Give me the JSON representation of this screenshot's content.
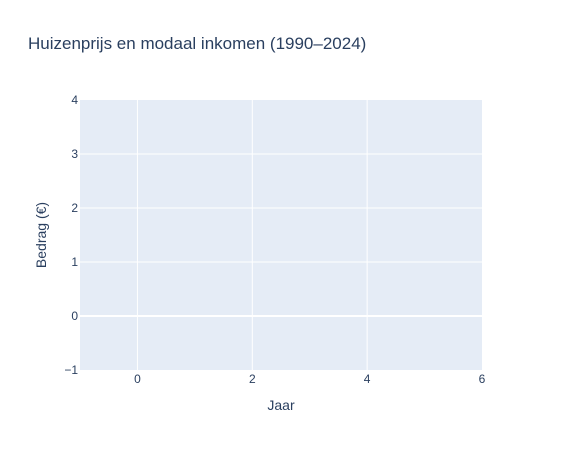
{
  "chart_data": {
    "type": "line",
    "title": "Huizenprijs en modaal inkomen (1990–2024)",
    "xlabel": "Jaar",
    "ylabel": "Bedrag (€)",
    "xlim": [
      -1,
      6
    ],
    "ylim": [
      -1,
      4
    ],
    "x_ticks": [
      0,
      2,
      4,
      6
    ],
    "y_ticks": [
      -1,
      0,
      1,
      2,
      3,
      4
    ],
    "x_tick_labels": [
      "0",
      "2",
      "4",
      "6"
    ],
    "y_tick_labels": [
      "−1",
      "0",
      "1",
      "2",
      "3",
      "4"
    ],
    "grid": true,
    "series": [],
    "colors": {
      "plot_background": "#e5ecf6",
      "grid": "#ffffff",
      "text": "#2a3f5f"
    }
  }
}
